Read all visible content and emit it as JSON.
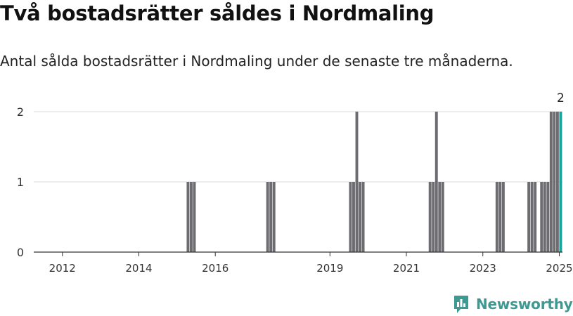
{
  "header": {
    "title": "Två bostadsrätter såldes i Nordmaling",
    "subtitle": "Antal sålda bostadsrätter i Nordmaling under de senaste tre månaderna."
  },
  "brand": {
    "name": "Newsworthy",
    "icon": "newsworthy-logo-icon",
    "color": "#3d9a92"
  },
  "chart_data": {
    "type": "bar",
    "title": "",
    "xlabel": "",
    "ylabel": "",
    "xlim": [
      "2011-04",
      "2025-02"
    ],
    "ylim": [
      0,
      2
    ],
    "y_ticks": [
      0,
      1,
      2
    ],
    "x_ticks": [
      {
        "label": "2012",
        "date": "2012-01"
      },
      {
        "label": "2014",
        "date": "2014-01"
      },
      {
        "label": "2016",
        "date": "2016-01"
      },
      {
        "label": "2019",
        "date": "2019-01"
      },
      {
        "label": "2021",
        "date": "2021-01"
      },
      {
        "label": "2023",
        "date": "2023-01"
      },
      {
        "label": "2025",
        "date": "2025-01"
      }
    ],
    "grid": true,
    "colors": {
      "bar": "#6d6c71",
      "highlight": "#1aa39a",
      "grid": "#d9d9d9",
      "axis": "#333333"
    },
    "series": [
      {
        "points": [
          {
            "date": "2015-04",
            "value": 1
          },
          {
            "date": "2015-05",
            "value": 1
          },
          {
            "date": "2015-06",
            "value": 1
          },
          {
            "date": "2017-05",
            "value": 1
          },
          {
            "date": "2017-06",
            "value": 1
          },
          {
            "date": "2017-07",
            "value": 1
          },
          {
            "date": "2019-07",
            "value": 1
          },
          {
            "date": "2019-08",
            "value": 1
          },
          {
            "date": "2019-09",
            "value": 2
          },
          {
            "date": "2019-10",
            "value": 1
          },
          {
            "date": "2019-11",
            "value": 1
          },
          {
            "date": "2021-08",
            "value": 1
          },
          {
            "date": "2021-09",
            "value": 1
          },
          {
            "date": "2021-10",
            "value": 2
          },
          {
            "date": "2021-11",
            "value": 1
          },
          {
            "date": "2021-12",
            "value": 1
          },
          {
            "date": "2023-05",
            "value": 1
          },
          {
            "date": "2023-06",
            "value": 1
          },
          {
            "date": "2023-07",
            "value": 1
          },
          {
            "date": "2024-03",
            "value": 1
          },
          {
            "date": "2024-04",
            "value": 1
          },
          {
            "date": "2024-05",
            "value": 1
          },
          {
            "date": "2024-07",
            "value": 1
          },
          {
            "date": "2024-08",
            "value": 1
          },
          {
            "date": "2024-09",
            "value": 1
          },
          {
            "date": "2024-10",
            "value": 2
          },
          {
            "date": "2024-11",
            "value": 2
          },
          {
            "date": "2024-12",
            "value": 2
          }
        ]
      }
    ],
    "highlight": {
      "date": "2025-01",
      "value": 2,
      "label": "2"
    }
  }
}
